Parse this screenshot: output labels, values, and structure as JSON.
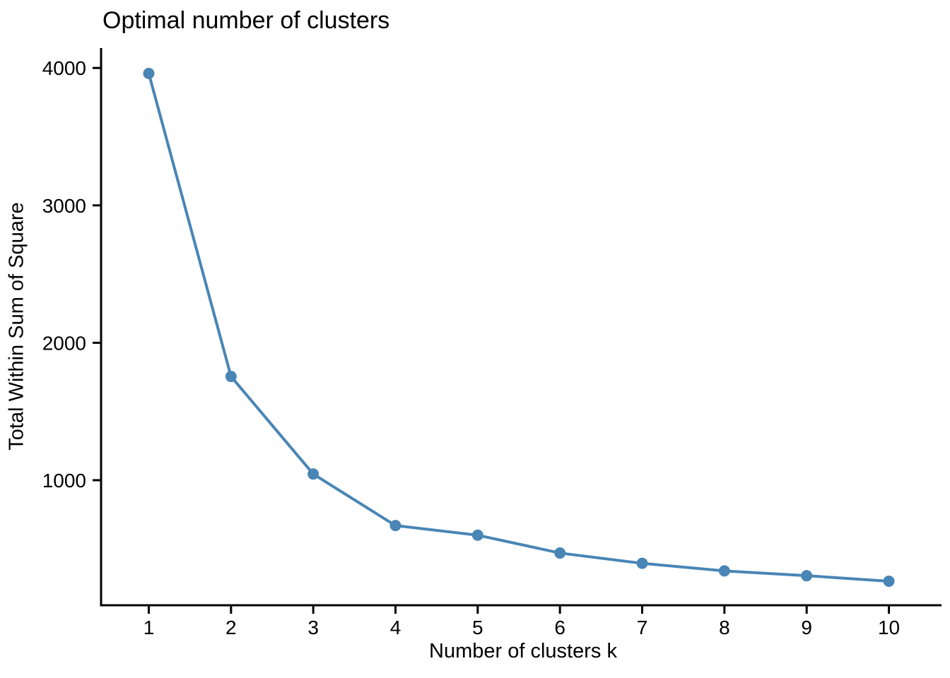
{
  "figure": {
    "title": "Optimal number of clusters",
    "x_axis_title": "Number of clusters k",
    "y_axis_title": "Total Within Sum of Square"
  },
  "chart_data": {
    "type": "line",
    "title": "Optimal number of clusters",
    "xlabel": "Number of clusters k",
    "ylabel": "Total Within Sum of Square",
    "x": [
      1,
      2,
      3,
      4,
      5,
      6,
      7,
      8,
      9,
      10
    ],
    "y": [
      3960,
      1755,
      1045,
      670,
      600,
      470,
      395,
      340,
      305,
      265
    ],
    "x_ticks": [
      1,
      2,
      3,
      4,
      5,
      6,
      7,
      8,
      9,
      10
    ],
    "y_ticks": [
      1000,
      2000,
      3000,
      4000
    ],
    "xlim": [
      0.42,
      10.64
    ],
    "ylim": [
      90,
      4145
    ],
    "grid": false,
    "legend": "none",
    "line_color": "#4985B5",
    "marker": "circle",
    "axis_color": "#000000"
  }
}
